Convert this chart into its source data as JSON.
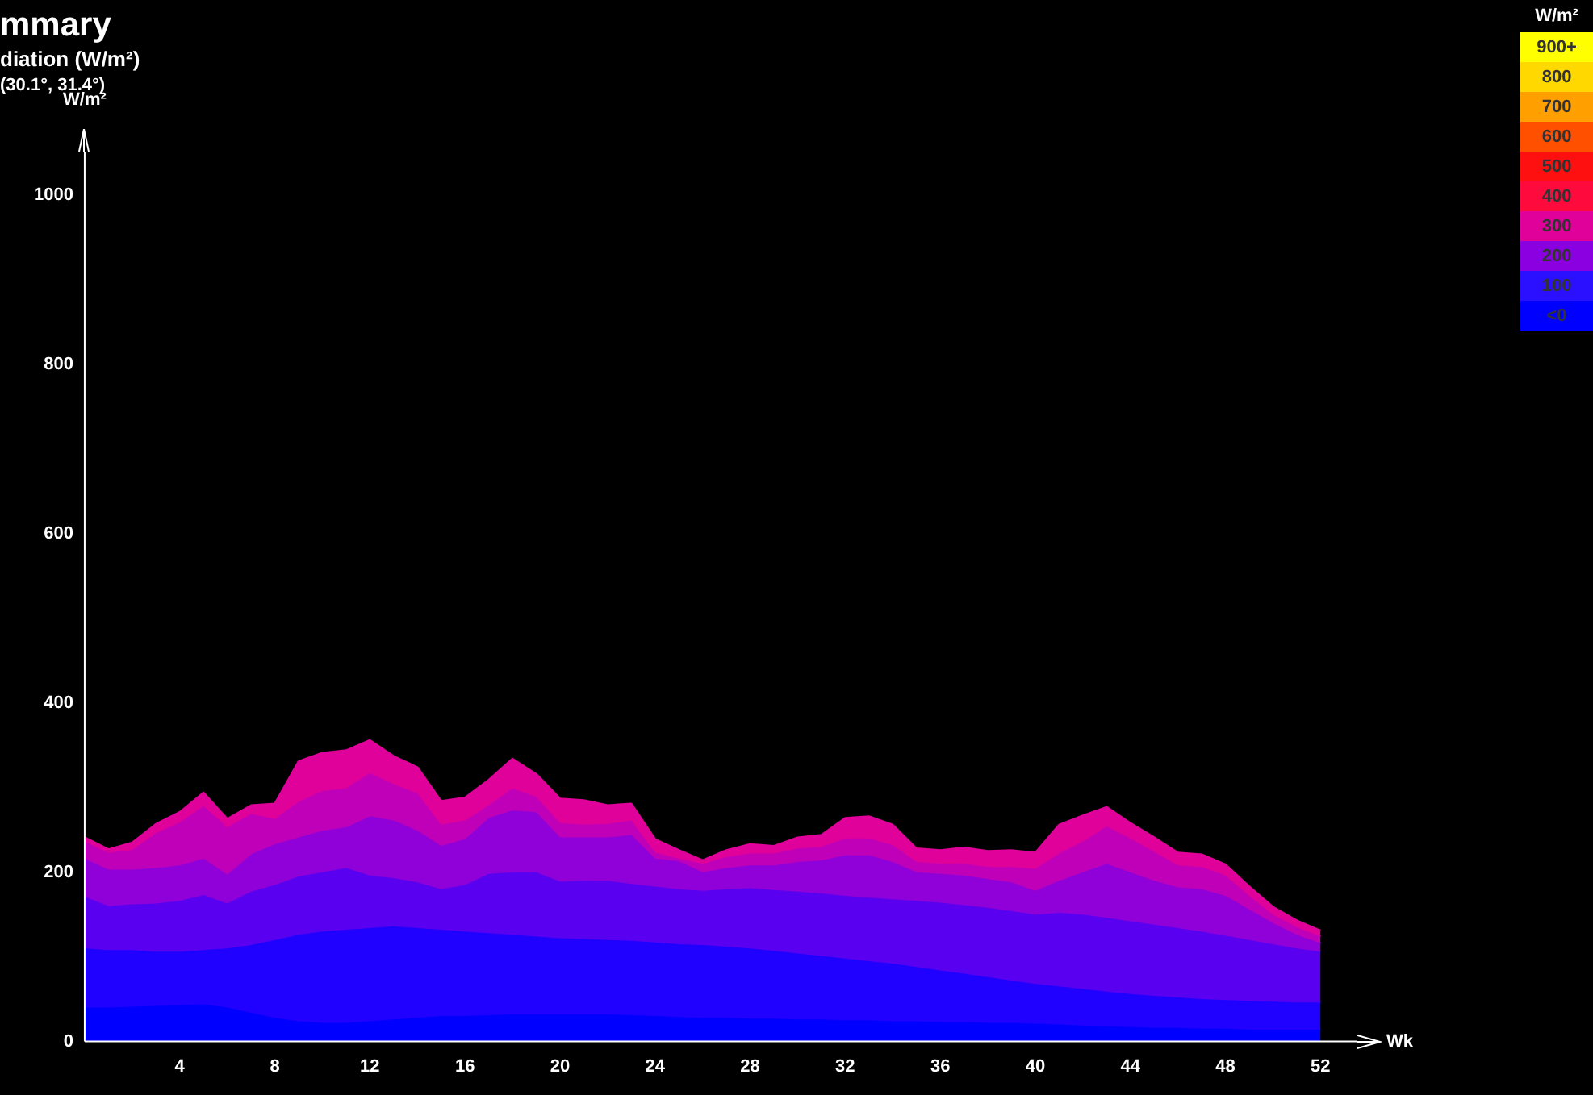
{
  "chart_data": {
    "type": "area",
    "title": "mmary",
    "subtitle": "diation (W/m²)",
    "annotations": [
      "(30.1°, 31.4°)"
    ],
    "xlabel": "Wk",
    "ylabel": "W/m²",
    "clabel": "W/m²",
    "x": [
      0,
      1,
      2,
      3,
      4,
      5,
      6,
      7,
      8,
      9,
      10,
      11,
      12,
      13,
      14,
      15,
      16,
      17,
      18,
      19,
      20,
      21,
      22,
      23,
      24,
      25,
      26,
      27,
      28,
      29,
      30,
      31,
      32,
      33,
      34,
      35,
      36,
      37,
      38,
      39,
      40,
      41,
      42,
      43,
      44,
      45,
      46,
      47,
      48,
      49,
      50,
      51,
      52
    ],
    "xlim": [
      0,
      54.5
    ],
    "xticks": [
      4,
      8,
      12,
      16,
      20,
      24,
      28,
      32,
      36,
      40,
      44,
      48,
      52
    ],
    "ylim": [
      0,
      1078
    ],
    "yticks": [
      0,
      200,
      400,
      600,
      800,
      1000
    ],
    "cticks": [
      {
        "value": 900,
        "label": "900+"
      },
      800,
      700,
      600,
      500,
      400,
      300,
      200,
      100,
      {
        "value": 0,
        "label": "<0"
      }
    ],
    "grid": false,
    "legend": false,
    "series": [
      {
        "color": "#e0009a",
        "values": [
          241,
          227,
          235,
          257,
          271,
          294,
          263,
          279,
          281,
          331,
          341,
          344,
          356,
          337,
          324,
          284,
          288,
          309,
          334,
          316,
          287,
          285,
          279,
          281,
          239,
          226,
          214,
          226,
          233,
          231,
          241,
          244,
          264,
          266,
          256,
          228,
          226,
          229,
          225,
          226,
          223,
          256,
          267,
          277,
          258,
          241,
          223,
          221,
          209,
          183,
          159,
          143,
          131
        ]
      },
      {
        "color": "#c000b8",
        "values": [
          236,
          223,
          226,
          246,
          259,
          278,
          253,
          269,
          263,
          283,
          296,
          299,
          317,
          304,
          293,
          256,
          261,
          279,
          299,
          289,
          258,
          256,
          257,
          261,
          223,
          216,
          210,
          218,
          222,
          222,
          228,
          230,
          240,
          240,
          232,
          212,
          210,
          210,
          206,
          206,
          204,
          222,
          236,
          254,
          240,
          224,
          208,
          206,
          196,
          172,
          150,
          135,
          124
        ]
      },
      {
        "color": "#9000d8",
        "values": [
          216,
          203,
          203,
          205,
          208,
          216,
          197,
          221,
          233,
          241,
          249,
          253,
          266,
          261,
          249,
          231,
          239,
          264,
          273,
          271,
          241,
          241,
          241,
          244,
          216,
          213,
          200,
          205,
          208,
          208,
          212,
          214,
          220,
          220,
          212,
          200,
          198,
          196,
          192,
          188,
          178,
          190,
          200,
          210,
          200,
          190,
          182,
          180,
          172,
          156,
          140,
          126,
          116
        ]
      },
      {
        "color": "#5a00f0",
        "values": [
          171,
          160,
          162,
          163,
          166,
          173,
          163,
          177,
          185,
          195,
          200,
          205,
          196,
          193,
          188,
          180,
          185,
          198,
          200,
          200,
          189,
          190,
          190,
          186,
          183,
          180,
          178,
          180,
          181,
          179,
          177,
          175,
          172,
          170,
          168,
          166,
          164,
          161,
          158,
          154,
          150,
          152,
          150,
          146,
          142,
          138,
          134,
          130,
          125,
          120,
          115,
          110,
          106
        ]
      },
      {
        "color": "#2000ff",
        "values": [
          110,
          108,
          108,
          106,
          106,
          108,
          110,
          114,
          120,
          126,
          130,
          132,
          134,
          136,
          134,
          132,
          130,
          128,
          126,
          124,
          122,
          121,
          120,
          119,
          117,
          115,
          114,
          112,
          110,
          107,
          104,
          101,
          98,
          95,
          92,
          88,
          84,
          80,
          76,
          72,
          68,
          65,
          62,
          59,
          56,
          54,
          52,
          50,
          49,
          48,
          47,
          46,
          46
        ]
      },
      {
        "color": "#0000ff",
        "values": [
          40,
          40,
          41,
          42,
          43,
          44,
          40,
          34,
          28,
          24,
          22,
          22,
          24,
          26,
          28,
          30,
          30,
          31,
          32,
          32,
          32,
          32,
          32,
          31,
          30,
          29,
          28,
          28,
          27,
          27,
          26,
          26,
          25,
          25,
          24,
          24,
          23,
          23,
          22,
          22,
          21,
          20,
          19,
          18,
          17,
          16,
          16,
          15,
          15,
          14,
          14,
          14,
          14
        ]
      }
    ]
  }
}
